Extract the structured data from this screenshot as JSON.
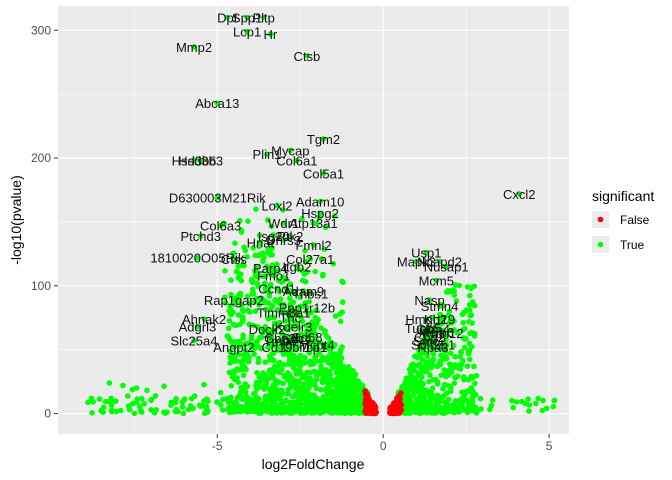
{
  "chart_data": {
    "type": "scatter",
    "title": "",
    "xlabel": "log2FoldChange",
    "ylabel": "-log10(pvalue)",
    "xlim": [
      -9.8,
      5.6
    ],
    "ylim": [
      -16,
      319
    ],
    "x_ticks": [
      -5,
      0,
      5
    ],
    "x_tick_labels": [
      "-5",
      "0",
      "5"
    ],
    "y_ticks": [
      0,
      100,
      200,
      300
    ],
    "y_tick_labels": [
      "0",
      "100",
      "200",
      "300"
    ],
    "grid": true,
    "legend": {
      "title": "significant",
      "placement": "right",
      "entries": [
        {
          "label": "False",
          "color": "#ff0000"
        },
        {
          "label": "True",
          "color": "#00ff00"
        }
      ]
    },
    "colors": {
      "true": "#00ff00",
      "false": "#ff0000",
      "panel": "#ebebeb",
      "grid": "#ffffff"
    },
    "labeled_points": [
      {
        "gene": "Dpt",
        "x": -4.7,
        "y": 310
      },
      {
        "gene": "Spp1",
        "x": -4.1,
        "y": 310
      },
      {
        "gene": "Pltp",
        "x": -3.6,
        "y": 310
      },
      {
        "gene": "Lcp1",
        "x": -4.1,
        "y": 299
      },
      {
        "gene": "Hr",
        "x": -3.4,
        "y": 297
      },
      {
        "gene": "Mmp2",
        "x": -5.7,
        "y": 287
      },
      {
        "gene": "Ctsb",
        "x": -2.3,
        "y": 280
      },
      {
        "gene": "Abca13",
        "x": -5.0,
        "y": 243
      },
      {
        "gene": "Tgm2",
        "x": -1.8,
        "y": 215
      },
      {
        "gene": "Plin1",
        "x": -3.5,
        "y": 203
      },
      {
        "gene": "Mycap",
        "x": -2.8,
        "y": 206
      },
      {
        "gene": "Hsd3b3",
        "x": -5.5,
        "y": 198
      },
      {
        "gene": "Hsd3b6",
        "x": -5.7,
        "y": 198
      },
      {
        "gene": "Col6a1",
        "x": -2.6,
        "y": 198
      },
      {
        "gene": "Col5a1",
        "x": -1.8,
        "y": 188
      },
      {
        "gene": "Cxcl2",
        "x": 4.1,
        "y": 172
      },
      {
        "gene": "D630003M21Rik",
        "x": -5.0,
        "y": 169
      },
      {
        "gene": "Adam10",
        "x": -1.9,
        "y": 166
      },
      {
        "gene": "Loxl2",
        "x": -3.2,
        "y": 163
      },
      {
        "gene": "Hspg2",
        "x": -1.9,
        "y": 157
      },
      {
        "gene": "Wdr1",
        "x": -3.0,
        "y": 149
      },
      {
        "gene": "Atp13a1",
        "x": -2.1,
        "y": 149
      },
      {
        "gene": "Col6a3",
        "x": -4.9,
        "y": 147
      },
      {
        "gene": "Ptchd3",
        "x": -5.5,
        "y": 139
      },
      {
        "gene": "Isg20",
        "x": -3.3,
        "y": 139
      },
      {
        "gene": "Dhrs3",
        "x": -3.0,
        "y": 136
      },
      {
        "gene": "Ptk2",
        "x": -2.8,
        "y": 139
      },
      {
        "gene": "Hnat",
        "x": -3.7,
        "y": 134
      },
      {
        "gene": "Fmnl2",
        "x": -2.1,
        "y": 132
      },
      {
        "gene": "Usp1",
        "x": 1.3,
        "y": 126
      },
      {
        "gene": "Ncapd2",
        "x": 1.7,
        "y": 119
      },
      {
        "gene": "Mapk3",
        "x": 1.0,
        "y": 119
      },
      {
        "gene": "Nusap1",
        "x": 1.9,
        "y": 115
      },
      {
        "gene": "1810020O05Rik",
        "x": -5.6,
        "y": 122
      },
      {
        "gene": "Ctss",
        "x": -4.5,
        "y": 121
      },
      {
        "gene": "Col27a1",
        "x": -2.2,
        "y": 121
      },
      {
        "gene": "Parp4",
        "x": -3.4,
        "y": 114
      },
      {
        "gene": "Itgb2",
        "x": -2.6,
        "y": 115
      },
      {
        "gene": "Mcm5",
        "x": 1.6,
        "y": 104
      },
      {
        "gene": "Fmo1",
        "x": -3.3,
        "y": 108
      },
      {
        "gene": "Ccnd1",
        "x": -3.2,
        "y": 98
      },
      {
        "gene": "Adam9",
        "x": -2.4,
        "y": 96
      },
      {
        "gene": "Thbs1",
        "x": -2.2,
        "y": 94
      },
      {
        "gene": "Rap1gap2",
        "x": -4.5,
        "y": 89
      },
      {
        "gene": "Ppp1r12b",
        "x": -2.3,
        "y": 83
      },
      {
        "gene": "Nasp",
        "x": 1.4,
        "y": 89
      },
      {
        "gene": "Stmn4",
        "x": 1.7,
        "y": 84
      },
      {
        "gene": "Timm8a1",
        "x": -3.0,
        "y": 79
      },
      {
        "gene": "Tnc",
        "x": -2.8,
        "y": 75
      },
      {
        "gene": "Hmgb2",
        "x": 1.3,
        "y": 74
      },
      {
        "gene": "Krt19",
        "x": 1.7,
        "y": 74
      },
      {
        "gene": "Ahnak2",
        "x": -5.4,
        "y": 74
      },
      {
        "gene": "Adgrl3",
        "x": -5.6,
        "y": 68
      },
      {
        "gene": "Kdelr3",
        "x": -2.7,
        "y": 68
      },
      {
        "gene": "Cldn4",
        "x": 1.5,
        "y": 66
      },
      {
        "gene": "Tubb5",
        "x": 1.2,
        "y": 67
      },
      {
        "gene": "Mcm6",
        "x": 1.6,
        "y": 64
      },
      {
        "gene": "Dock2",
        "x": -3.5,
        "y": 66
      },
      {
        "gene": "Gbp2b",
        "x": -3.0,
        "y": 59
      },
      {
        "gene": "Sdc4",
        "x": -2.6,
        "y": 59
      },
      {
        "gene": "Cd19",
        "x": -3.2,
        "y": 52
      },
      {
        "gene": "Cpg2",
        "x": 1.4,
        "y": 60
      },
      {
        "gene": "Smc2",
        "x": 1.4,
        "y": 57
      },
      {
        "gene": "Sult2b1",
        "x": 1.5,
        "y": 54
      },
      {
        "gene": "Ptpn12",
        "x": 1.8,
        "y": 63
      },
      {
        "gene": "Slc25a4",
        "x": -5.7,
        "y": 57
      },
      {
        "gene": "Angpt2",
        "x": -4.5,
        "y": 52
      },
      {
        "gene": "Cbr1",
        "x": -2.6,
        "y": 52
      },
      {
        "gene": "Tcp1",
        "x": -2.1,
        "y": 52
      },
      {
        "gene": "Rpa3",
        "x": 1.5,
        "y": 52
      },
      {
        "gene": "Tmp3",
        "x": -3.1,
        "y": 57
      },
      {
        "gene": "Cd68",
        "x": -2.3,
        "y": 60
      },
      {
        "gene": "Mcpt4",
        "x": -2.0,
        "y": 54
      }
    ],
    "clusters": {
      "left": {
        "x_range": [
          -9.5,
          -0.3
        ],
        "max_y": 250
      },
      "right": {
        "x_range": [
          0.3,
          5.2
        ],
        "max_y": 135
      }
    },
    "non_significant_region": {
      "x_range": [
        -0.55,
        0.55
      ],
      "max_y": 18
    }
  }
}
